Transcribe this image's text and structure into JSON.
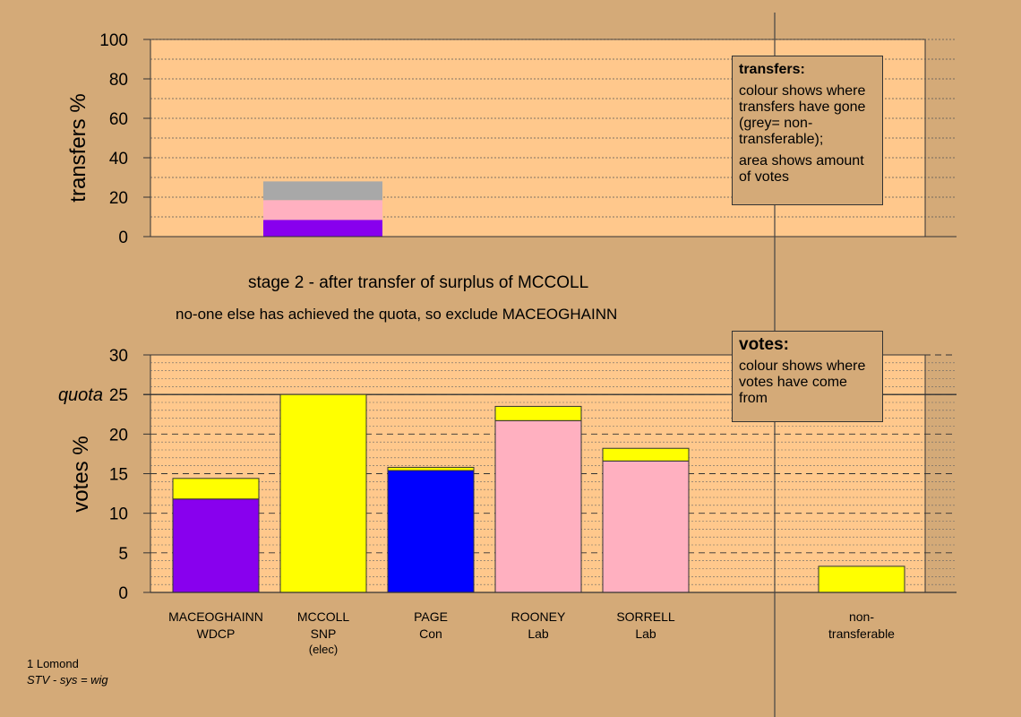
{
  "stage": {
    "line1": "stage 2 - after transfer of surplus of MCCOLL",
    "line2": "no-one else has achieved the quota, so exclude MACEOGHAINN"
  },
  "legend_transfers": {
    "title": "transfers:",
    "line1": "colour shows where transfers have gone (grey= non-transferable);",
    "line2": "area shows amount of votes"
  },
  "legend_votes": {
    "title": "votes:",
    "line1": "colour shows where votes have come from"
  },
  "footer": {
    "line1": "1 Lomond",
    "line2": "STV - sys = wig"
  },
  "colors": {
    "background": "#d4aa78",
    "plot_bg": "#ffc88c",
    "purple": "#8800ee",
    "yellow": "#ffff00",
    "blue": "#0000ff",
    "pink": "#ffb0c0",
    "grey": "#a8a8a8"
  },
  "chart_data": [
    {
      "type": "bar",
      "id": "transfers",
      "ylabel": "transfers %",
      "ylim": [
        0,
        100
      ],
      "yticks": [
        0,
        20,
        40,
        60,
        80,
        100
      ],
      "grid": true,
      "stacked_bar": {
        "segments": [
          {
            "color": "#8800ee",
            "value": 8.5
          },
          {
            "color": "#ffb0c0",
            "value": 10
          },
          {
            "color": "#a8a8a8",
            "value": 9.5
          }
        ]
      }
    },
    {
      "type": "bar",
      "id": "votes",
      "ylabel": "votes %",
      "ylim": [
        0,
        30
      ],
      "yticks": [
        0,
        5,
        10,
        15,
        20,
        25,
        30
      ],
      "quota": 25,
      "quota_label": "quota",
      "grid": true,
      "categories": [
        {
          "name": "MACEOGHAINN",
          "party": "WDCP",
          "note": "",
          "segments": [
            {
              "color": "#8800ee",
              "value": 11.8
            },
            {
              "color": "#ffff00",
              "value": 2.6
            }
          ]
        },
        {
          "name": "MCCOLL",
          "party": "SNP",
          "note": "(elec)",
          "segments": [
            {
              "color": "#ffff00",
              "value": 25
            }
          ]
        },
        {
          "name": "PAGE",
          "party": "Con",
          "note": "",
          "segments": [
            {
              "color": "#0000ff",
              "value": 15.4
            },
            {
              "color": "#ffff00",
              "value": 0.4
            }
          ]
        },
        {
          "name": "ROONEY",
          "party": "Lab",
          "note": "",
          "segments": [
            {
              "color": "#ffb0c0",
              "value": 21.7
            },
            {
              "color": "#ffff00",
              "value": 1.8
            }
          ]
        },
        {
          "name": "SORRELL",
          "party": "Lab",
          "note": "",
          "segments": [
            {
              "color": "#ffb0c0",
              "value": 16.6
            },
            {
              "color": "#ffff00",
              "value": 1.6
            }
          ]
        },
        {
          "name": "non-",
          "party": "transferable",
          "note": "",
          "segments": [
            {
              "color": "#ffff00",
              "value": 3.3
            }
          ]
        }
      ]
    }
  ]
}
